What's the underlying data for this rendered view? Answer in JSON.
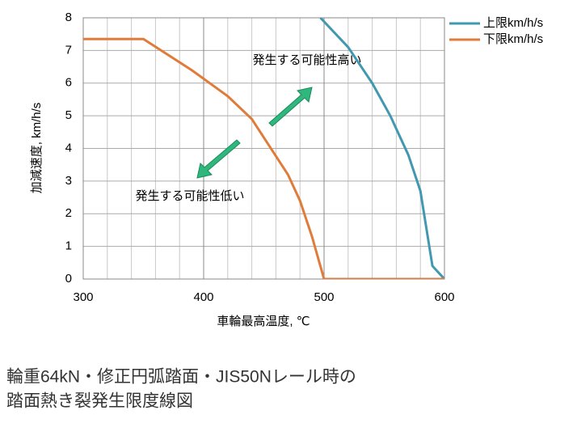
{
  "chart_data": {
    "type": "line",
    "xlabel": "車輪最高温度, ℃",
    "ylabel": "加減速度, km/h/s",
    "xlim": [
      300,
      600
    ],
    "xticks": [
      300,
      400,
      500,
      600
    ],
    "ylim": [
      0,
      8
    ],
    "yticks": [
      0,
      1,
      2,
      3,
      4,
      5,
      6,
      7,
      8
    ],
    "grid": true,
    "legend": "upper right",
    "series": [
      {
        "name": "上限km/h/s",
        "color": "#4198af",
        "x": [
          497,
          520,
          540,
          555,
          570,
          580,
          590,
          600
        ],
        "values": [
          8,
          7.1,
          6.0,
          5.0,
          3.8,
          2.7,
          0.4,
          0
        ]
      },
      {
        "name": "下限km/h/s",
        "color": "#e07b39",
        "x": [
          300,
          350,
          390,
          420,
          440,
          470,
          480,
          490,
          500,
          600
        ],
        "values": [
          7.35,
          7.35,
          6.4,
          5.6,
          4.9,
          3.2,
          2.4,
          1.3,
          0,
          0
        ]
      }
    ],
    "annotations": [
      "発生する可能性高い",
      "発生する可能性低い"
    ]
  },
  "caption": [
    "輪重64kN・修正円弧踏面・JIS50Nレール時の",
    "踏面熱き裂発生限度線図"
  ]
}
